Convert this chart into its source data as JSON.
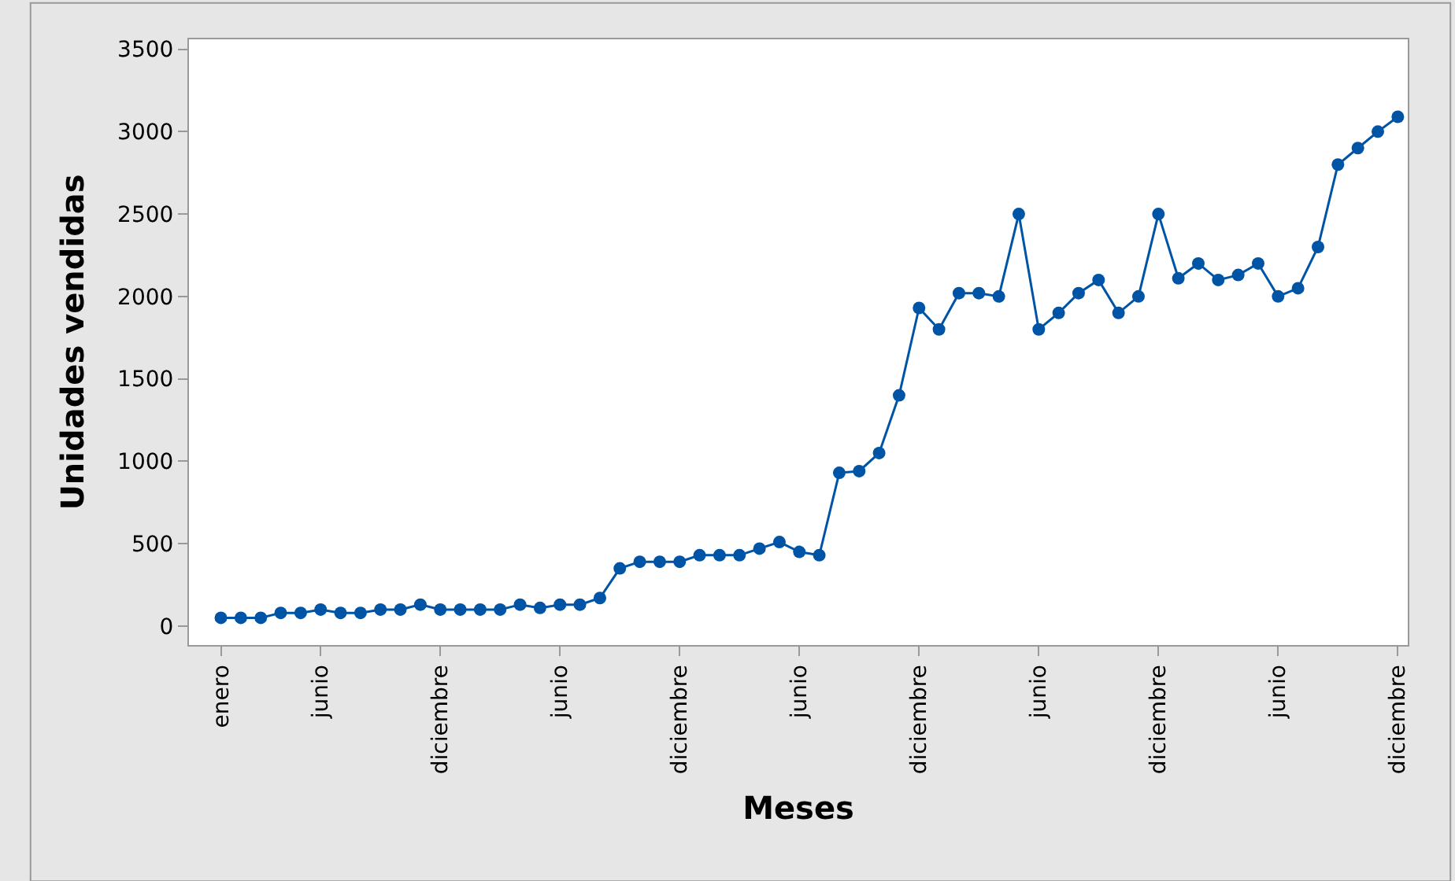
{
  "chart_data": {
    "type": "line",
    "xlabel": "Meses",
    "ylabel": "Unidades vendidas",
    "categories": [
      "enero",
      null,
      null,
      null,
      null,
      "junio",
      null,
      null,
      null,
      null,
      null,
      "diciembre",
      null,
      null,
      null,
      null,
      null,
      "junio",
      null,
      null,
      null,
      null,
      null,
      "diciembre",
      null,
      null,
      null,
      null,
      null,
      "junio",
      null,
      null,
      null,
      null,
      null,
      "diciembre",
      null,
      null,
      null,
      null,
      null,
      "junio",
      null,
      null,
      null,
      null,
      null,
      "diciembre",
      null,
      null,
      null,
      null,
      null,
      "junio",
      null,
      null,
      null,
      null,
      null,
      "diciembre"
    ],
    "series": [
      {
        "color": "#0054a6",
        "values": [
          50,
          50,
          50,
          80,
          80,
          100,
          80,
          80,
          100,
          100,
          130,
          100,
          100,
          100,
          100,
          130,
          110,
          130,
          130,
          170,
          350,
          390,
          390,
          390,
          430,
          430,
          430,
          470,
          510,
          450,
          430,
          930,
          940,
          1050,
          1400,
          1930,
          1800,
          2020,
          2020,
          2000,
          2500,
          1800,
          1900,
          2020,
          2100,
          1900,
          2000,
          2500,
          2110,
          2200,
          2100,
          2130,
          2200,
          2000,
          2050,
          2300,
          2800,
          2900,
          3000,
          3090
        ]
      }
    ],
    "ylim": [
      -115,
      3560
    ],
    "yticks": [
      0,
      500,
      1000,
      1500,
      2000,
      2500,
      3000,
      3500
    ],
    "marker": "circle",
    "line_style": "solid",
    "legend": false
  }
}
